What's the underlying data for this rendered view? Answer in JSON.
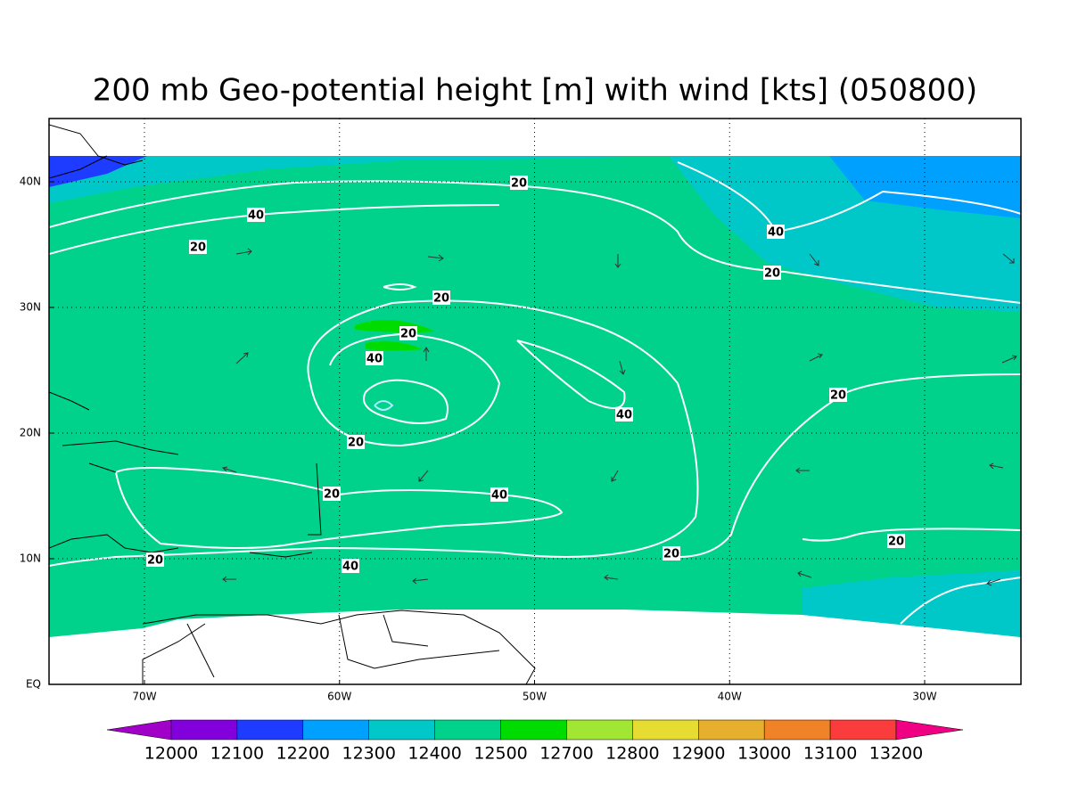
{
  "title": "200 mb Geo-potential height [m] with wind [kts] (050800)",
  "map": {
    "lon_labels": [
      "70W",
      "60W",
      "50W",
      "40W",
      "30W"
    ],
    "lat_labels": [
      "EQ",
      "10N",
      "20N",
      "30N",
      "40N"
    ],
    "contour_labels": [
      "20",
      "40",
      "20",
      "40",
      "20",
      "20",
      "20",
      "40",
      "40",
      "20",
      "20",
      "20",
      "40",
      "20",
      "20",
      "20",
      "40"
    ]
  },
  "colorbar": {
    "labels": [
      "12000",
      "12100",
      "12200",
      "12300",
      "12400",
      "12500",
      "12700",
      "12800",
      "12900",
      "13000",
      "13100",
      "13200"
    ],
    "colors": [
      "#a000c8",
      "#8200dc",
      "#1e3cff",
      "#00a0ff",
      "#00c8c8",
      "#00d28c",
      "#00dc00",
      "#a0e632",
      "#e6dc32",
      "#e6af2d",
      "#f08228",
      "#fa3c3c",
      "#f00082"
    ]
  }
}
